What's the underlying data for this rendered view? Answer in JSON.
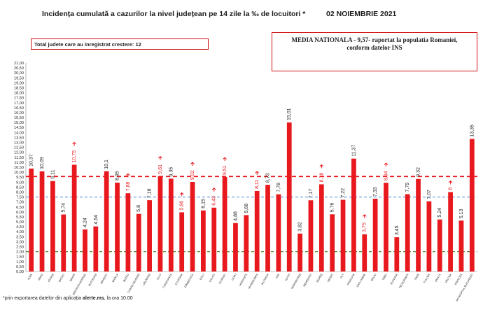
{
  "header": {
    "title": "Incidența cumulată a cazurilor la nivel județean pe 14 zile la ‰ de locuitori *",
    "date": "02 NOIEMBRIE 2021"
  },
  "info_box": {
    "label": "Total judete care au inregistrat crestere: 12"
  },
  "national_box": {
    "line1": "MEDIA NATIONALA - 9,57-  raportat la populatia Romaniei,",
    "line2": "conform datelor INS"
  },
  "footnote": {
    "prefix": "*prin exportarea datelor din aplicația ",
    "bold": "alerte.ms",
    "suffix": ", la ora 10.00"
  },
  "colors": {
    "bar": "#e8191e",
    "national_line": "#e8191e",
    "blue_line": "#5b8fd6",
    "green_line": "#4d8c2f",
    "increase_arrow": "#e8191e"
  },
  "chart_data": {
    "type": "bar",
    "title": "Incidența cumulată a cazurilor la nivel județean pe 14 zile la ‰ de locuitori *",
    "ylim": [
      0,
      21
    ],
    "ytick_step": 0.5,
    "yticks": [
      "0,00",
      "0,50",
      "1,00",
      "1,50",
      "2,00",
      "2,50",
      "3,00",
      "3,50",
      "4,00",
      "4,50",
      "5,00",
      "5,50",
      "6,00",
      "6,50",
      "7,00",
      "7,50",
      "8,00",
      "8,50",
      "9,00",
      "9,50",
      "10,00",
      "10,50",
      "11,00",
      "11,50",
      "12,00",
      "12,50",
      "13,00",
      "13,50",
      "14,00",
      "14,50",
      "15,00",
      "15,50",
      "16,00",
      "16,50",
      "17,00",
      "17,50",
      "18,00",
      "18,50",
      "19,00",
      "19,50",
      "20,00",
      "20,50",
      "21,00"
    ],
    "categories": [
      "ALBA",
      "ARAD",
      "ARGEȘ",
      "BACĂU",
      "BIHOR",
      "BISTRIȚA-NĂSĂUD",
      "BOTOȘANI",
      "BRAȘOV",
      "BRĂILA",
      "BUZĂU",
      "CARAȘ-SEVERIN",
      "CĂLĂRAȘI",
      "CLUJ",
      "CONSTANȚA",
      "COVASNA",
      "DÂMBOVIȚA",
      "DOLJ",
      "GALAȚI",
      "GIURGIU",
      "GORJ",
      "HARGHITA",
      "HUNEDOARA",
      "IALOMIȚA",
      "IAȘI",
      "ILFOV",
      "MARAMUREȘ",
      "MEHEDINȚI",
      "MUREȘ",
      "NEAMȚ",
      "OLT",
      "PRAHOVA",
      "SATU MARE",
      "SĂLAJ",
      "SIBIU",
      "SUCEAVA",
      "TELEORMAN",
      "TIMIȘ",
      "TULCEA",
      "VASLUI",
      "VÂLCEA",
      "VRANCEA",
      "MUNICIPIUL BUCUREȘTI"
    ],
    "values": [
      10.37,
      10.09,
      9.11,
      5.74,
      10.75,
      4.24,
      4.54,
      10.1,
      8.95,
      7.88,
      5.8,
      7.18,
      9.61,
      9.35,
      5.96,
      9.02,
      6.15,
      6.43,
      9.51,
      4.88,
      5.68,
      8.11,
      8.73,
      7.78,
      15.01,
      3.82,
      7.17,
      8.78,
      5.76,
      7.22,
      11.37,
      3.75,
      7.33,
      8.94,
      3.45,
      7.79,
      9.32,
      7.07,
      5.24,
      8.0,
      5.13,
      13.35
    ],
    "value_labels": [
      "10,37",
      "10,09",
      "9,11",
      "5,74",
      "10,75",
      "4,24",
      "4,54",
      "10,1",
      "8,95",
      "7,88",
      "5,8",
      "7,18",
      "9,61",
      "9,35",
      "5,96",
      "9,02",
      "6,15",
      "6,43",
      "9,51",
      "4,88",
      "5,68",
      "8,11",
      "8,73",
      "7,78",
      "15,01",
      "3,82",
      "7,17",
      "8,78",
      "5,76",
      "7,22",
      "11,37",
      "3,75",
      "7,33",
      "8,94",
      "3,45",
      "7,79",
      "9,32",
      "7,07",
      "5,24",
      "8",
      "5,13",
      "13,35"
    ],
    "increased": [
      false,
      false,
      false,
      false,
      true,
      false,
      false,
      false,
      false,
      true,
      false,
      false,
      true,
      false,
      true,
      true,
      false,
      true,
      true,
      false,
      false,
      true,
      false,
      false,
      false,
      false,
      false,
      true,
      false,
      false,
      false,
      true,
      false,
      true,
      false,
      false,
      false,
      false,
      false,
      true,
      false,
      false
    ],
    "reference_lines": [
      {
        "value": 9.57,
        "style": "dashed",
        "color": "#e8191e"
      },
      {
        "value": 7.5,
        "style": "dashed",
        "color": "#5b8fd6"
      },
      {
        "value": 2.0,
        "style": "dashed",
        "color": "#4d8c2f"
      }
    ]
  }
}
